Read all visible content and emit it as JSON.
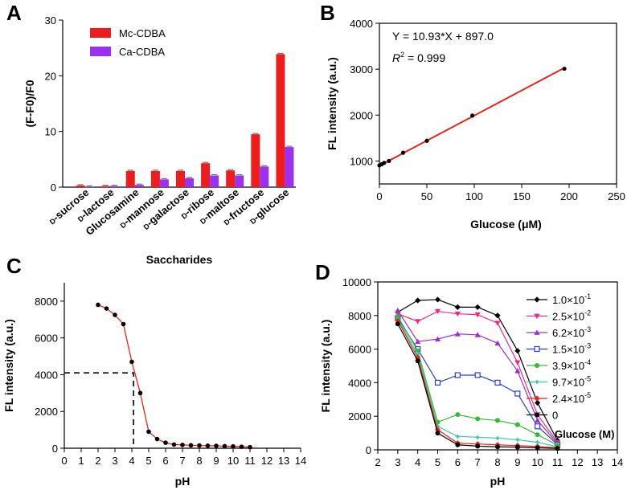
{
  "chart_data": [
    {
      "panel": "A",
      "type": "bar",
      "xlabel": "Saccharides",
      "ylabel": "(F-F0)/F0",
      "ylim": [
        0,
        30
      ],
      "yticks": [
        0,
        10,
        20,
        30
      ],
      "categories": [
        "D-sucrose",
        "D-lactose",
        "Glucosamine",
        "D-mannose",
        "D-galactose",
        "D-ribose",
        "D-maltose",
        "D-fructose",
        "D-glucose"
      ],
      "category_labels": [
        {
          "prefix": "D",
          "name": "-sucrose"
        },
        {
          "prefix": "D",
          "name": "-lactose"
        },
        {
          "prefix": "",
          "name": "Glucosamine"
        },
        {
          "prefix": "D",
          "name": "-mannose"
        },
        {
          "prefix": "D",
          "name": "-galactose"
        },
        {
          "prefix": "D",
          "name": "-ribose"
        },
        {
          "prefix": "D",
          "name": "-maltose"
        },
        {
          "prefix": "D",
          "name": "-fructose"
        },
        {
          "prefix": "D",
          "name": "-glucose"
        }
      ],
      "series": [
        {
          "name": "Mc-CDBA",
          "color": "#ee1c1c",
          "values": [
            0.3,
            0.2,
            2.9,
            2.9,
            2.9,
            4.3,
            3.0,
            9.5,
            23.9
          ]
        },
        {
          "name": "Ca-CDBA",
          "color": "#9b30f0",
          "values": [
            0.1,
            0.2,
            0.4,
            1.4,
            1.6,
            2.1,
            2.1,
            3.7,
            7.2
          ]
        }
      ],
      "legend": "top-left"
    },
    {
      "panel": "B",
      "type": "scatter",
      "xlabel": "Glucose (μM)",
      "ylabel": "FL intensity (a.u.)",
      "xlim": [
        0,
        250
      ],
      "ylim": [
        500,
        4000
      ],
      "xticks": [
        0,
        50,
        100,
        150,
        200,
        250
      ],
      "yticks": [
        1000,
        2000,
        3000,
        4000
      ],
      "x": [
        0,
        2.5,
        5,
        10,
        25,
        50,
        98,
        195
      ],
      "y": [
        905,
        930,
        960,
        1000,
        1180,
        1440,
        1990,
        3010
      ],
      "fit": {
        "slope": 10.93,
        "intercept": 897.0,
        "color": "#e8261b"
      },
      "equation": "Y = 10.93*X + 897.0",
      "r2_label": "R",
      "r2_sup": "2",
      "r2_value": " = 0.999"
    },
    {
      "panel": "C",
      "type": "line",
      "xlabel": "pH",
      "ylabel": "FL intensity (a.u.)",
      "xlim": [
        0,
        14
      ],
      "ylim": [
        0,
        9000
      ],
      "xticks": [
        0,
        1,
        2,
        3,
        4,
        5,
        6,
        7,
        8,
        9,
        10,
        11,
        12,
        13,
        14
      ],
      "yticks": [
        0,
        2000,
        4000,
        6000,
        8000
      ],
      "x": [
        2.0,
        2.5,
        3.0,
        3.5,
        4.0,
        4.5,
        5.0,
        5.5,
        6.0,
        6.5,
        7.0,
        7.5,
        8.0,
        8.5,
        9.0,
        9.5,
        10.0,
        10.5,
        11.0
      ],
      "y": [
        7800,
        7600,
        7250,
        6750,
        4700,
        3000,
        900,
        500,
        300,
        200,
        180,
        160,
        150,
        140,
        130,
        110,
        100,
        80,
        60
      ],
      "line_color": "#e8261b",
      "dashed_guide": {
        "x": 4.1,
        "y": 4100
      }
    },
    {
      "panel": "D",
      "type": "line",
      "xlabel": "pH",
      "ylabel": "FL intensity (a.u.)",
      "xlim": [
        2,
        14
      ],
      "ylim": [
        0,
        10000
      ],
      "xticks": [
        2,
        3,
        4,
        5,
        6,
        7,
        8,
        9,
        10,
        11,
        12,
        13,
        14
      ],
      "yticks": [
        0,
        2000,
        4000,
        6000,
        8000,
        10000
      ],
      "x": [
        3,
        4,
        5,
        6,
        7,
        8,
        9,
        10,
        11
      ],
      "legend_title": "Glucose (M)",
      "series": [
        {
          "base": "1.0×10",
          "exp": "-1",
          "color": "#000000",
          "marker": "diamond",
          "values": [
            8200,
            8900,
            8950,
            8500,
            8500,
            8000,
            5900,
            2800,
            550
          ]
        },
        {
          "base": "2.5×10",
          "exp": "-2",
          "color": "#ee2a84",
          "marker": "triangle-down",
          "values": [
            8100,
            7650,
            8250,
            8100,
            8050,
            7550,
            5200,
            2100,
            450
          ]
        },
        {
          "base": "6.2×10",
          "exp": "-3",
          "color": "#9b30d0",
          "marker": "triangle-up",
          "values": [
            8300,
            6450,
            6600,
            6900,
            6850,
            6350,
            4700,
            1750,
            380
          ]
        },
        {
          "base": "1.5×10",
          "exp": "-3",
          "color": "#2a3ed6",
          "marker": "square",
          "values": [
            7850,
            6000,
            4000,
            4450,
            4450,
            4000,
            3350,
            1400,
            320
          ]
        },
        {
          "base": "3.9×10",
          "exp": "-4",
          "color": "#33bb33",
          "marker": "circle",
          "values": [
            7950,
            5900,
            1650,
            2100,
            1850,
            1750,
            1500,
            900,
            280
          ]
        },
        {
          "base": "9.7×10",
          "exp": "-5",
          "color": "#3cc9a8",
          "marker": "star",
          "values": [
            7800,
            5700,
            1400,
            800,
            750,
            700,
            600,
            450,
            180
          ]
        },
        {
          "base": "2.4×10",
          "exp": "-5",
          "color": "#e8261b",
          "marker": "diamond",
          "values": [
            7700,
            5500,
            1200,
            400,
            350,
            300,
            250,
            200,
            120
          ]
        },
        {
          "base": "0",
          "exp": "",
          "color": "#000000",
          "marker": "circle",
          "values": [
            7500,
            5300,
            1000,
            300,
            220,
            180,
            160,
            120,
            80
          ]
        }
      ]
    }
  ],
  "panels": {
    "a": {
      "letter": "A"
    },
    "b": {
      "letter": "B"
    },
    "c": {
      "letter": "C"
    },
    "d": {
      "letter": "D"
    }
  }
}
